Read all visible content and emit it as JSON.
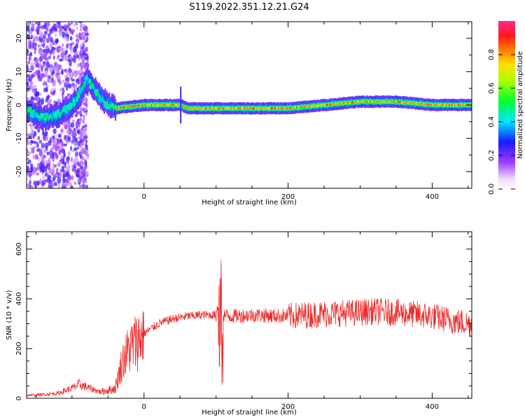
{
  "figure": {
    "title": "S119.2022.351.12.21.G24"
  },
  "colors": {
    "snr_line": "#ee2b2b",
    "frame": "#000000",
    "background": "#ffffff"
  },
  "chart_data": [
    {
      "type": "heatmap",
      "xlabel": "Height of straight line (km)",
      "ylabel": "Frequency (Hz)",
      "xlim": [
        -163,
        455
      ],
      "ylim": [
        -25,
        25
      ],
      "x_ticks": [
        0,
        200,
        400
      ],
      "y_ticks": [
        -20,
        -10,
        0,
        10,
        20
      ],
      "colorscale": "rainbow (white → purple → blue → cyan → green → yellow → orange → red → magenta)",
      "colorbar": {
        "label": "Normalized spectral amplitude",
        "range": [
          0,
          1
        ],
        "ticks": [
          0.0,
          0.2,
          0.4,
          0.6,
          0.8
        ]
      },
      "ridge": {
        "description": "dominant frequency track",
        "x": [
          -160,
          -140,
          -120,
          -100,
          -90,
          -80,
          -70,
          -60,
          -50,
          -40,
          0,
          50,
          60,
          100,
          150,
          200,
          250,
          300,
          350,
          400,
          455
        ],
        "y": [
          -2,
          -4,
          -3,
          0,
          3,
          8,
          5,
          2,
          0,
          -1,
          0,
          0,
          -1,
          -1,
          -1,
          -1,
          0,
          1,
          1,
          0,
          0
        ]
      }
    },
    {
      "type": "line",
      "xlabel": "Height of straight line (km)",
      "ylabel": "SNR (10 * v/v)",
      "xlim": [
        -163,
        455
      ],
      "ylim": [
        0,
        670
      ],
      "x_ticks": [
        0,
        200,
        400
      ],
      "y_ticks": [
        0,
        200,
        400,
        600
      ],
      "series": [
        {
          "color": "#ee2b2b",
          "x": [
            -160,
            -140,
            -120,
            -100,
            -90,
            -80,
            -60,
            -40,
            -30,
            -20,
            -10,
            0,
            20,
            40,
            60,
            80,
            100,
            105,
            110,
            120,
            150,
            200,
            250,
            300,
            320,
            350,
            400,
            430,
            455
          ],
          "y": [
            12,
            15,
            20,
            40,
            55,
            45,
            25,
            40,
            150,
            200,
            230,
            260,
            300,
            320,
            330,
            335,
            335,
            420,
            335,
            330,
            335,
            330,
            340,
            345,
            350,
            345,
            330,
            310,
            300
          ]
        }
      ]
    }
  ]
}
